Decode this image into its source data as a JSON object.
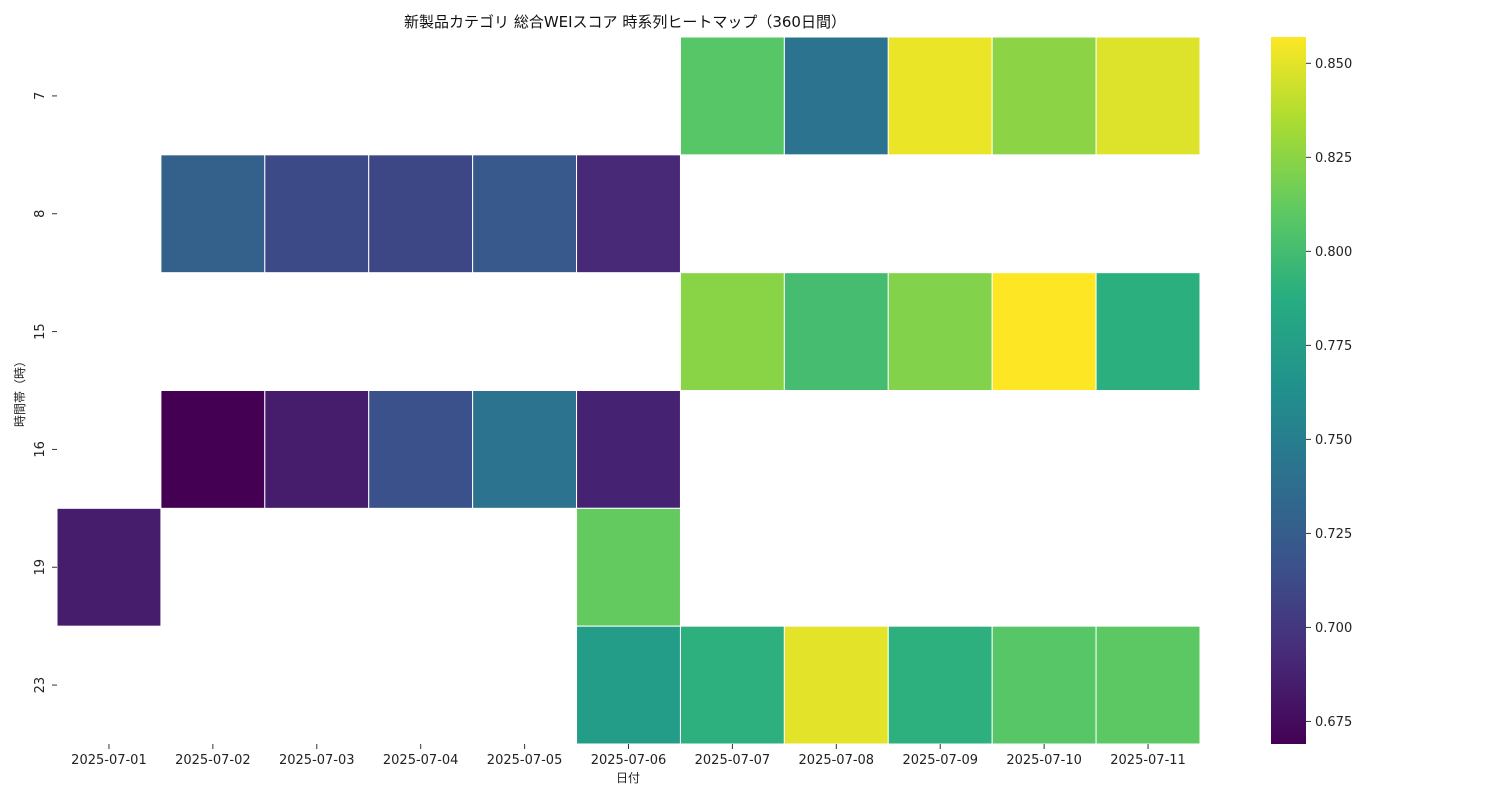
{
  "chart_data": {
    "type": "heatmap",
    "title": "新製品カテゴリ 総合WEIスコア 時系列ヒートマップ（360日間）",
    "xlabel": "日付",
    "ylabel": "時間帯（時）",
    "x_categories": [
      "2025-07-01",
      "2025-07-02",
      "2025-07-03",
      "2025-07-04",
      "2025-07-05",
      "2025-07-06",
      "2025-07-07",
      "2025-07-08",
      "2025-07-09",
      "2025-07-10",
      "2025-07-11"
    ],
    "y_categories": [
      "7",
      "8",
      "15",
      "16",
      "19",
      "23"
    ],
    "values": [
      [
        null,
        null,
        null,
        null,
        null,
        null,
        0.808,
        0.742,
        0.852,
        0.825,
        0.848
      ],
      [
        null,
        0.728,
        0.712,
        0.71,
        0.722,
        0.692,
        null,
        null,
        null,
        null,
        null
      ],
      [
        null,
        null,
        null,
        null,
        null,
        null,
        0.824,
        0.8,
        0.822,
        0.857,
        0.789
      ],
      [
        null,
        0.669,
        0.685,
        0.716,
        0.742,
        0.688,
        null,
        null,
        null,
        null,
        null
      ],
      [
        0.685,
        null,
        null,
        null,
        null,
        0.812,
        null,
        null,
        null,
        null,
        null
      ],
      [
        null,
        null,
        null,
        null,
        null,
        0.773,
        0.79,
        0.85,
        0.79,
        0.808,
        0.81
      ]
    ],
    "colorbar": {
      "colormap": "viridis",
      "vmin": 0.669,
      "vmax": 0.857,
      "ticks": [
        "0.675",
        "0.700",
        "0.725",
        "0.750",
        "0.775",
        "0.800",
        "0.825",
        "0.850"
      ]
    }
  }
}
